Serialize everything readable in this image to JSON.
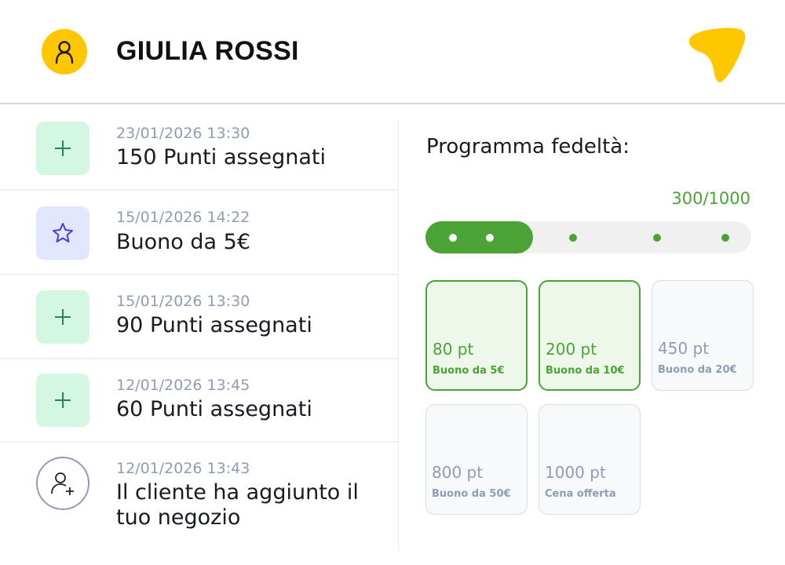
{
  "header": {
    "customer_name": "GIULIA ROSSI",
    "avatar_icon": "user-icon",
    "brand_color": "#FFC700"
  },
  "activity": [
    {
      "icon": "plus-icon",
      "date": "23/01/2026 13:30",
      "title": "150 Punti assegnati"
    },
    {
      "icon": "star-icon",
      "date": "15/01/2026 14:22",
      "title": "Buono da 5€"
    },
    {
      "icon": "plus-icon",
      "date": "15/01/2026 13:30",
      "title": "90 Punti assegnati"
    },
    {
      "icon": "plus-icon",
      "date": "12/01/2026 13:45",
      "title": "60 Punti assegnati"
    },
    {
      "icon": "user-plus-icon",
      "date": "12/01/2026 13:43",
      "title": "Il cliente ha aggiunto il tuo negozio"
    }
  ],
  "loyalty": {
    "title": "Programma fedeltà:",
    "score_text": "300/1000",
    "progress": 0.3,
    "accent": "#4BA336",
    "rewards": [
      {
        "points": "80 pt",
        "label": "Buono da 5€",
        "unlocked": true
      },
      {
        "points": "200 pt",
        "label": "Buono da 10€",
        "unlocked": true
      },
      {
        "points": "450 pt",
        "label": "Buono da 20€",
        "unlocked": false
      },
      {
        "points": "800 pt",
        "label": "Buono da 50€",
        "unlocked": false
      },
      {
        "points": "1000 pt",
        "label": "Cena offerta",
        "unlocked": false
      }
    ]
  }
}
